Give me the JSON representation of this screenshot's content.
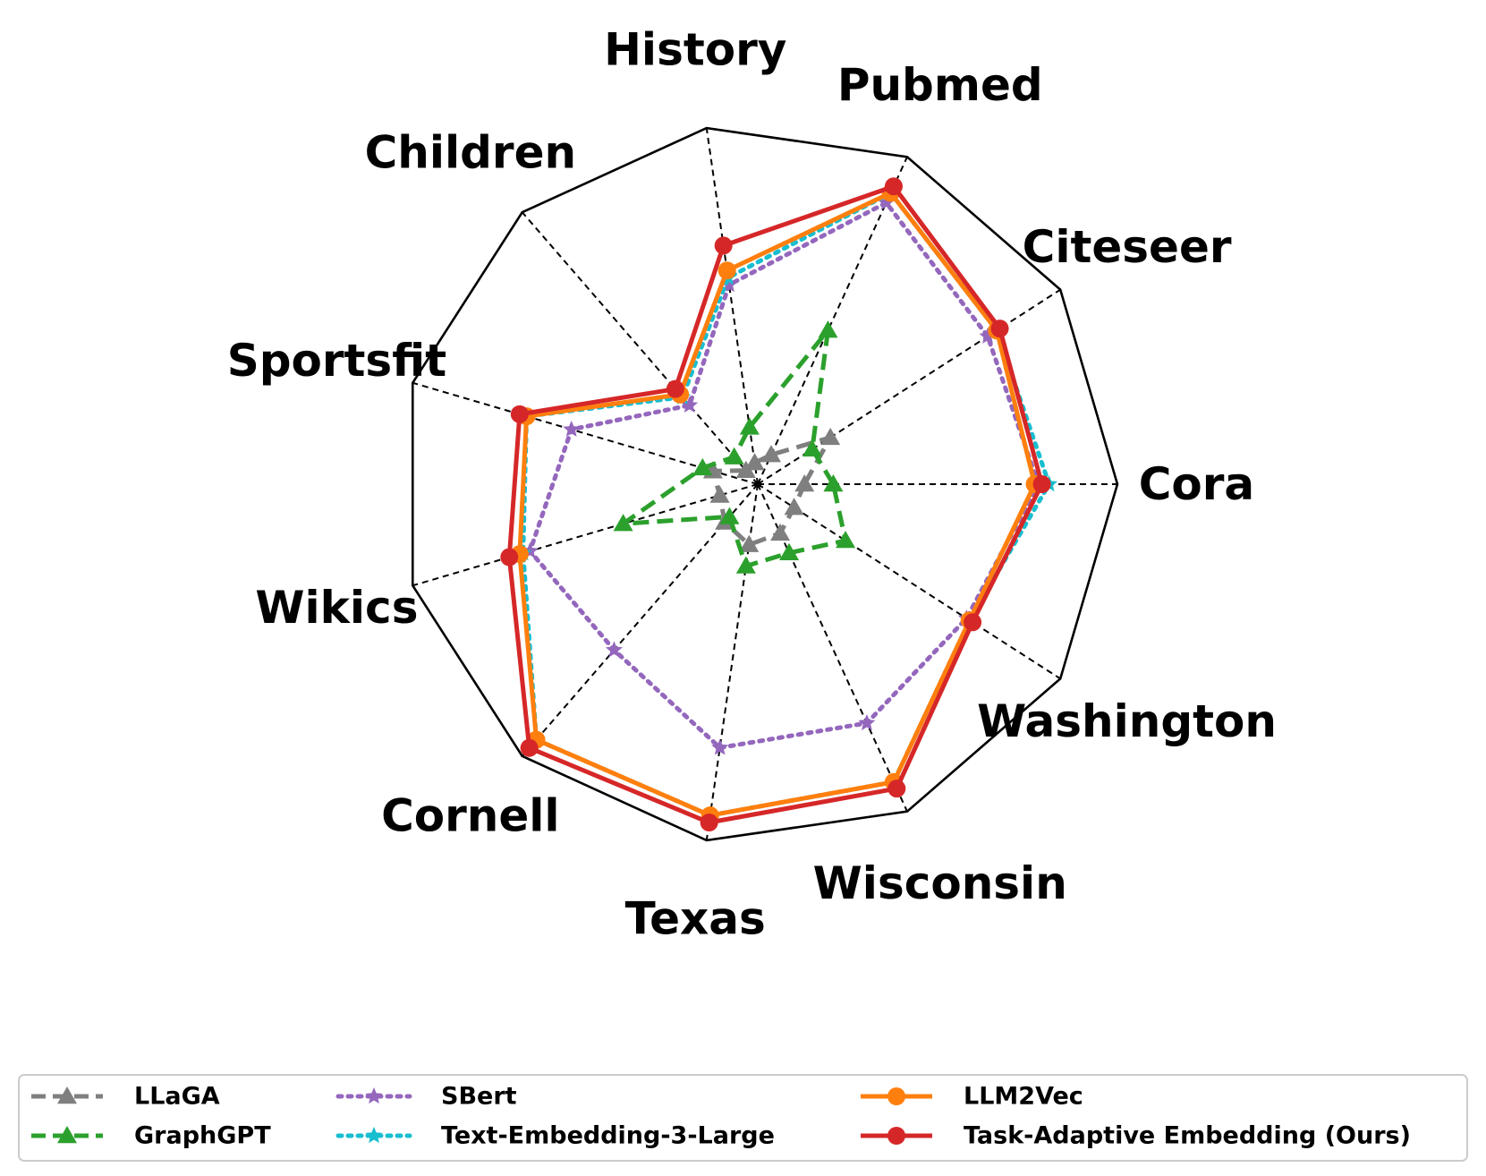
{
  "chart_data": {
    "type": "radar",
    "axes": [
      "Cora",
      "Citeseer",
      "Pubmed",
      "History",
      "Children",
      "Sportsfit",
      "Wikics",
      "Cornell",
      "Texas",
      "Wisconsin",
      "Washington"
    ],
    "rlim": [
      0,
      1
    ],
    "series": [
      {
        "name": "LLaGA",
        "color": "#7f7f7f",
        "style": "dashed",
        "marker": "triangle",
        "values": [
          0.13,
          0.24,
          0.09,
          0.06,
          0.05,
          0.13,
          0.11,
          0.14,
          0.17,
          0.15,
          0.12
        ]
      },
      {
        "name": "GraphGPT",
        "color": "#2ca02c",
        "style": "dashed",
        "marker": "triangle",
        "values": [
          0.21,
          0.18,
          0.47,
          0.16,
          0.1,
          0.16,
          0.39,
          0.12,
          0.23,
          0.21,
          0.29
        ]
      },
      {
        "name": "SBert",
        "color": "#9467bd",
        "style": "dotted",
        "marker": "star",
        "values": [
          0.78,
          0.76,
          0.86,
          0.56,
          0.29,
          0.54,
          0.66,
          0.61,
          0.74,
          0.73,
          0.69
        ]
      },
      {
        "name": "Text-Embedding-3-Large",
        "color": "#17becf",
        "style": "dotted",
        "marker": "star",
        "values": [
          0.81,
          0.79,
          0.89,
          0.58,
          0.32,
          0.67,
          0.68,
          0.94,
          0.93,
          0.91,
          0.7
        ]
      },
      {
        "name": "LLM2Vec",
        "color": "#ff7f0e",
        "style": "solid",
        "marker": "circle",
        "values": [
          0.77,
          0.79,
          0.89,
          0.6,
          0.33,
          0.67,
          0.69,
          0.94,
          0.93,
          0.91,
          0.7
        ]
      },
      {
        "name": "Task-Adaptive Embedding (Ours)",
        "color": "#d62728",
        "style": "solid",
        "marker": "circle",
        "values": [
          0.79,
          0.8,
          0.91,
          0.67,
          0.35,
          0.69,
          0.72,
          0.97,
          0.95,
          0.93,
          0.71
        ]
      }
    ]
  },
  "legend": {
    "position": "bottom",
    "columns": 3
  }
}
